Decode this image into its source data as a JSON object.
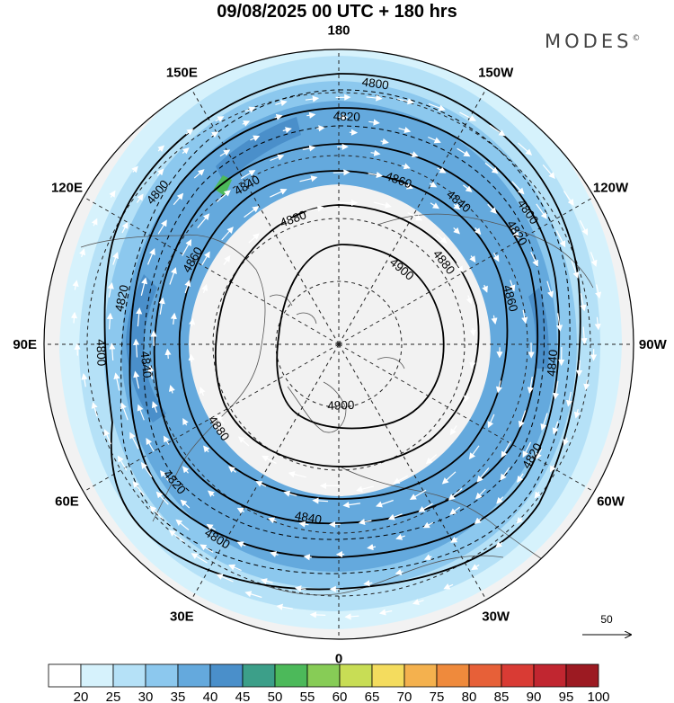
{
  "title": "09/08/2025  00 UTC  + 180 hrs",
  "brand": "MODES",
  "brand_mark": "©",
  "longitude_labels": [
    {
      "text": "180",
      "lon": 180
    },
    {
      "text": "150E",
      "lon": 150
    },
    {
      "text": "120E",
      "lon": 120
    },
    {
      "text": "90E",
      "lon": 90
    },
    {
      "text": "60E",
      "lon": 60
    },
    {
      "text": "30E",
      "lon": 30
    },
    {
      "text": "0",
      "lon": 0
    },
    {
      "text": "30W",
      "lon": -30
    },
    {
      "text": "60W",
      "lon": -60
    },
    {
      "text": "90W",
      "lon": -90
    },
    {
      "text": "120W",
      "lon": -120
    },
    {
      "text": "150W",
      "lon": -150
    }
  ],
  "contours": [
    {
      "value": "4800",
      "labels": [
        {
          "az": 8,
          "r": 0.89
        },
        {
          "az": 310,
          "r": 0.8
        },
        {
          "az": 268,
          "r": 0.81
        },
        {
          "az": 212,
          "r": 0.78
        },
        {
          "az": 55,
          "r": 0.78
        }
      ]
    },
    {
      "value": "4820",
      "labels": [
        {
          "az": 2,
          "r": 0.77
        },
        {
          "az": 282,
          "r": 0.75
        },
        {
          "az": 230,
          "r": 0.73
        },
        {
          "az": 58,
          "r": 0.71
        },
        {
          "az": 120,
          "r": 0.76
        }
      ]
    },
    {
      "value": "4840",
      "labels": [
        {
          "az": 330,
          "r": 0.62
        },
        {
          "az": 40,
          "r": 0.63
        },
        {
          "az": 95,
          "r": 0.73
        },
        {
          "az": 264,
          "r": 0.66
        },
        {
          "az": 190,
          "r": 0.6
        }
      ]
    },
    {
      "value": "4860",
      "labels": [
        {
          "az": 20,
          "r": 0.59
        },
        {
          "az": 300,
          "r": 0.57
        },
        {
          "az": 75,
          "r": 0.6
        }
      ]
    },
    {
      "value": "4880",
      "labels": [
        {
          "az": 340,
          "r": 0.45
        },
        {
          "az": 52,
          "r": 0.45
        },
        {
          "az": 235,
          "r": 0.5
        }
      ]
    },
    {
      "value": "4900",
      "labels": [
        {
          "az": 40,
          "r": 0.33
        },
        {
          "az": 178,
          "r": 0.21
        }
      ]
    }
  ],
  "colorbar": {
    "labels": [
      "20",
      "25",
      "30",
      "35",
      "40",
      "45",
      "50",
      "55",
      "60",
      "65",
      "70",
      "75",
      "80",
      "85",
      "90",
      "95",
      "100"
    ],
    "colors": [
      "#ffffff",
      "#d6f2fc",
      "#b5e1f7",
      "#8cc8ee",
      "#64a9dd",
      "#4a8fca",
      "#3c9f89",
      "#4cb95a",
      "#87cc56",
      "#c8dd55",
      "#f4dc5e",
      "#f4b14e",
      "#ef8a3c",
      "#e76038",
      "#d93b34",
      "#c12630",
      "#9c1a22"
    ]
  },
  "reference_vector": {
    "value": "50"
  }
}
